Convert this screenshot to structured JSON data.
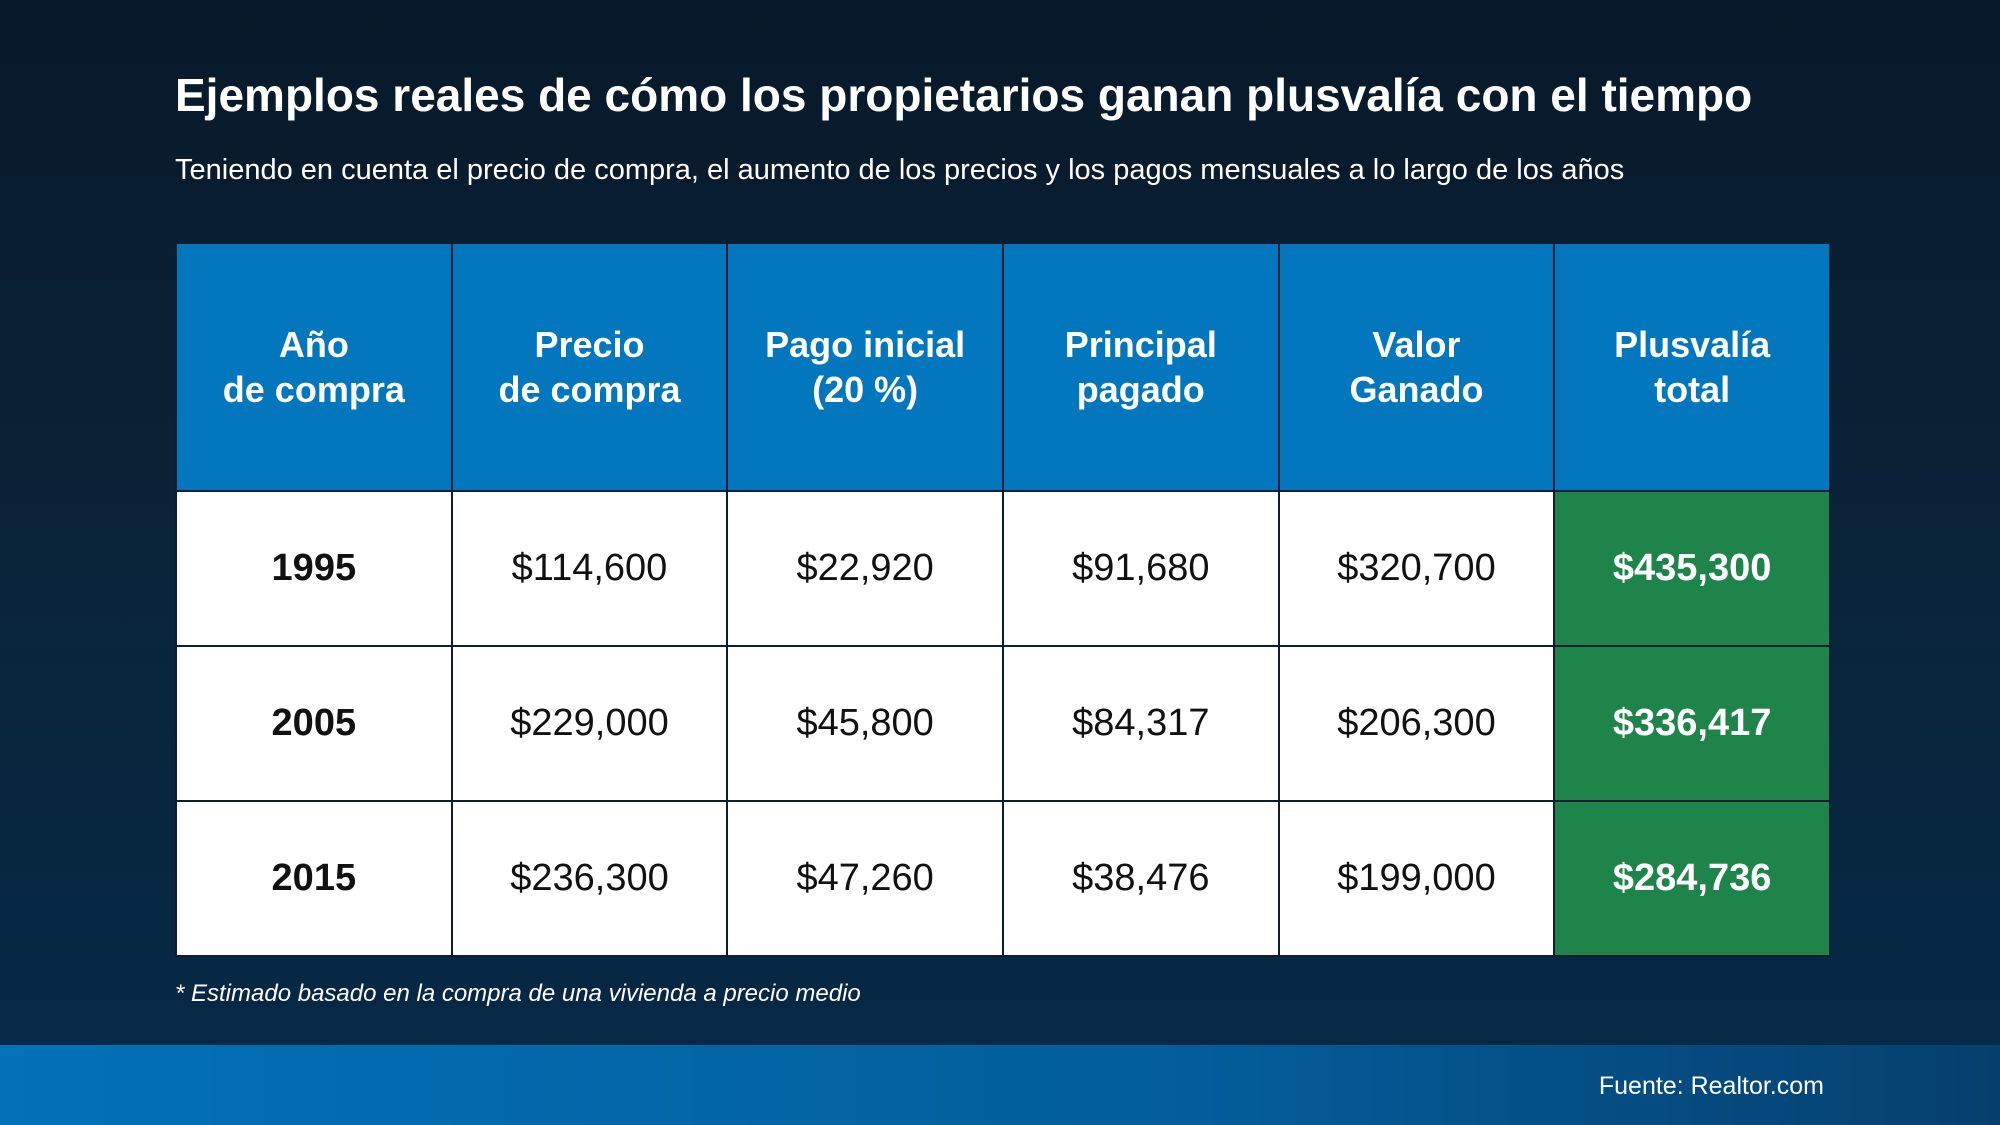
{
  "title": "Ejemplos reales de cómo los propietarios ganan plusvalía con el tiempo",
  "subtitle": "Teniendo en cuenta el precio de compra, el aumento de los precios y los pagos mensuales a lo largo de los años",
  "chart_data": {
    "type": "table",
    "columns": [
      [
        "Año",
        "de compra"
      ],
      [
        "Precio",
        "de compra"
      ],
      [
        "Pago inicial",
        "(20 %)"
      ],
      [
        "Principal",
        "pagado"
      ],
      [
        "Valor",
        "Ganado"
      ],
      [
        "Plusvalía",
        "total"
      ]
    ],
    "rows": [
      [
        "1995",
        "$114,600",
        "$22,920",
        "$91,680",
        "$320,700",
        "$435,300"
      ],
      [
        "2005",
        "$229,000",
        "$45,800",
        "$84,317",
        "$206,300",
        "$336,417"
      ],
      [
        "2015",
        "$236,300",
        "$47,260",
        "$38,476",
        "$199,000",
        "$284,736"
      ]
    ]
  },
  "colors": {
    "header_blue": "#0277bd",
    "equity_green": "#1e8449",
    "background_dark": "#07192a"
  },
  "footnote": "* Estimado basado en la compra de una vivienda a precio medio",
  "source": "Fuente: Realtor.com"
}
